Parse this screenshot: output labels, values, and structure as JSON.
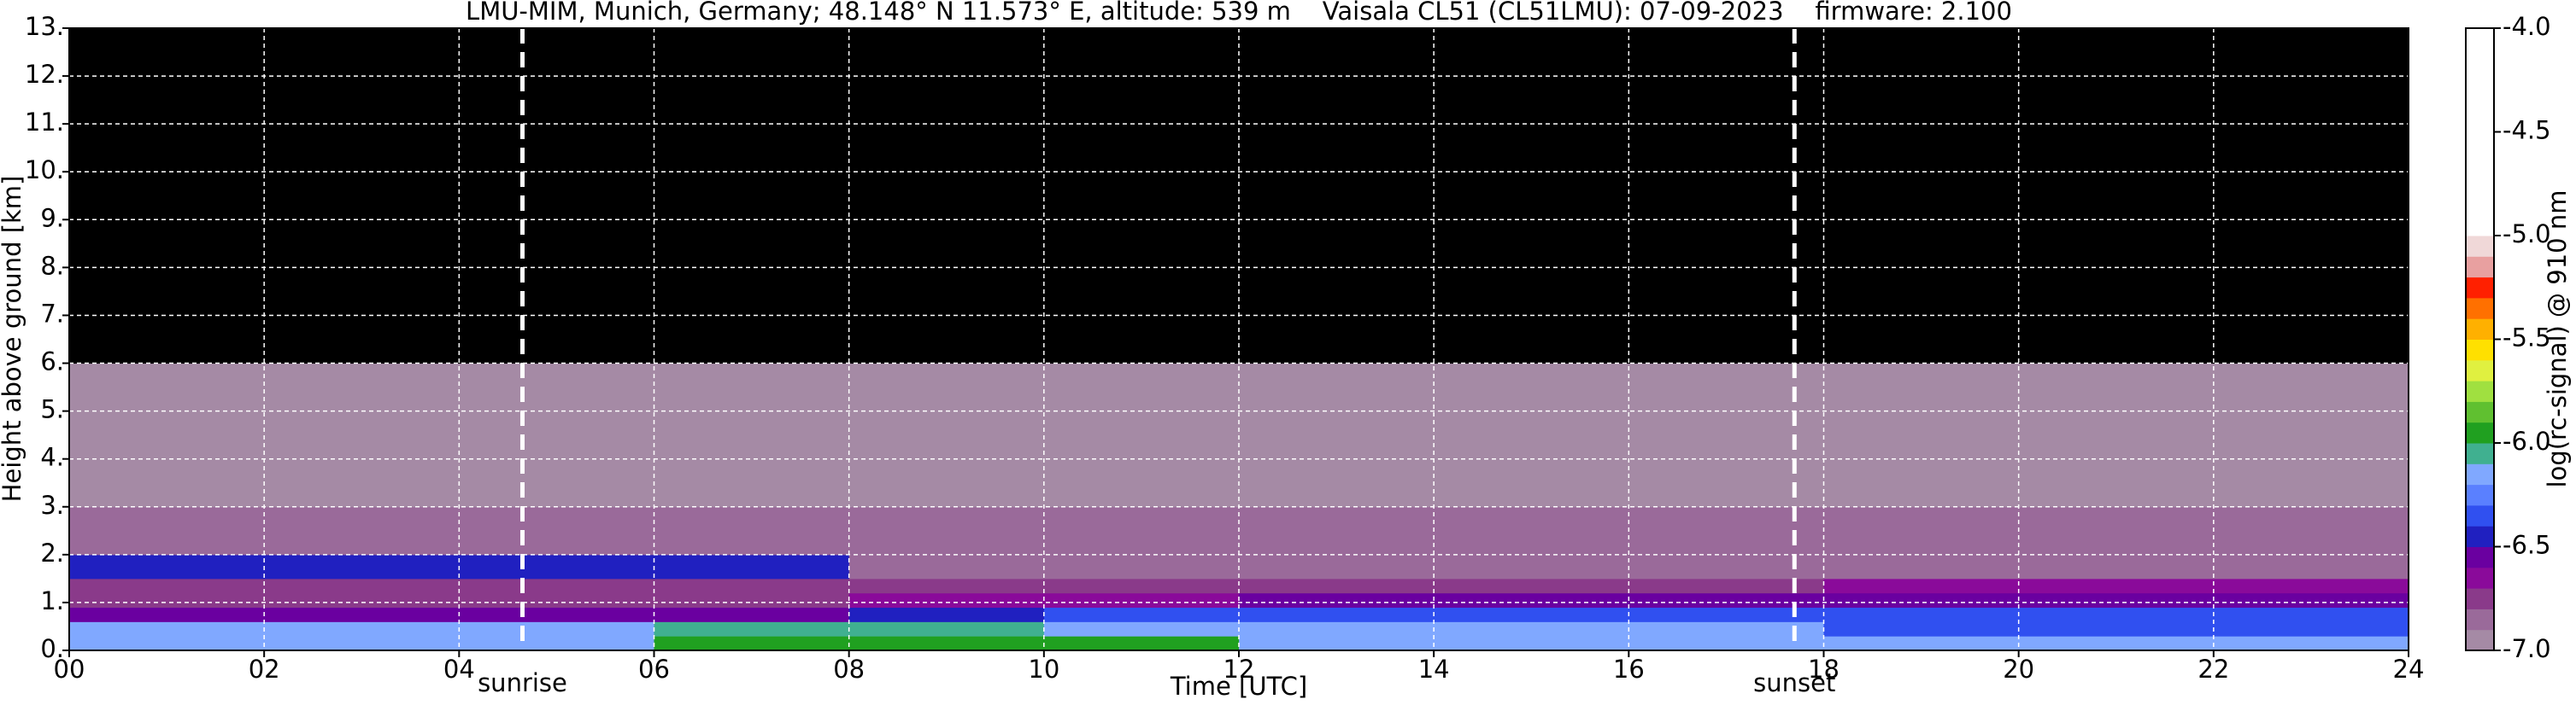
{
  "chart_data": {
    "type": "heatmap",
    "title": "LMU-MIM, Munich, Germany; 48.148° N 11.573° E, altitude: 539 m    Vaisala CL51 (CL51LMU): 07-09-2023    firmware: 2.100",
    "xlabel": "Time [UTC]",
    "ylabel": "Height above ground [km]",
    "xlim": [
      0,
      24
    ],
    "ylim": [
      0,
      13
    ],
    "xticks": [
      {
        "value": 0,
        "label": "00"
      },
      {
        "value": 2,
        "label": "02"
      },
      {
        "value": 4,
        "label": "04"
      },
      {
        "value": 6,
        "label": "06"
      },
      {
        "value": 8,
        "label": "08"
      },
      {
        "value": 10,
        "label": "10"
      },
      {
        "value": 12,
        "label": "12"
      },
      {
        "value": 14,
        "label": "14"
      },
      {
        "value": 16,
        "label": "16"
      },
      {
        "value": 18,
        "label": "18"
      },
      {
        "value": 20,
        "label": "20"
      },
      {
        "value": 22,
        "label": "22"
      },
      {
        "value": 24,
        "label": "24"
      }
    ],
    "yticks": [
      {
        "value": 0,
        "label": "0."
      },
      {
        "value": 1,
        "label": "1."
      },
      {
        "value": 2,
        "label": "2."
      },
      {
        "value": 3,
        "label": "3."
      },
      {
        "value": 4,
        "label": "4."
      },
      {
        "value": 5,
        "label": "5."
      },
      {
        "value": 6,
        "label": "6."
      },
      {
        "value": 7,
        "label": "7."
      },
      {
        "value": 8,
        "label": "8."
      },
      {
        "value": 9,
        "label": "9."
      },
      {
        "value": 10,
        "label": "10."
      },
      {
        "value": 11,
        "label": "11."
      },
      {
        "value": 12,
        "label": "12."
      },
      {
        "value": 13,
        "label": "13."
      }
    ],
    "grid": true,
    "xbins": [
      0,
      2,
      4,
      6,
      8,
      10,
      12,
      14,
      16,
      18,
      20,
      22,
      24
    ],
    "ybins": [
      0,
      0.3,
      0.6,
      0.9,
      1.2,
      1.5,
      2,
      3,
      4,
      6,
      8,
      10,
      13
    ],
    "z": [
      [
        -6.2,
        -6.2,
        -6.15,
        -5.95,
        -5.95,
        -5.95,
        -6.2,
        -6.2,
        -6.2,
        -6.2,
        -6.2,
        -6.2
      ],
      [
        -6.15,
        -6.15,
        -6.15,
        -6.1,
        -6.1,
        -6.2,
        -6.2,
        -6.2,
        -6.2,
        -6.35,
        -6.35,
        -6.35
      ],
      [
        -6.6,
        -6.6,
        -6.6,
        -6.55,
        -6.45,
        -6.35,
        -6.35,
        -6.35,
        -6.35,
        -6.35,
        -6.35,
        -6.35
      ],
      [
        -6.75,
        -6.75,
        -6.75,
        -6.75,
        -6.7,
        -6.65,
        -6.6,
        -6.6,
        -6.6,
        -6.6,
        -6.6,
        -6.6
      ],
      [
        -6.8,
        -6.8,
        -6.8,
        -6.8,
        -6.8,
        -6.8,
        -6.75,
        -6.75,
        -6.75,
        -6.7,
        -6.7,
        -6.7
      ],
      [
        -6.45,
        -6.45,
        -6.5,
        -6.5,
        -6.85,
        -6.85,
        -6.85,
        -6.85,
        -6.85,
        -6.85,
        -6.85,
        -6.85
      ],
      [
        -6.9,
        -6.9,
        -6.9,
        -6.9,
        -6.9,
        -6.9,
        -6.9,
        -6.9,
        -6.9,
        -6.9,
        -6.9,
        -6.9
      ],
      [
        -6.95,
        -6.95,
        -6.95,
        -6.95,
        -6.95,
        -6.95,
        -6.95,
        -6.95,
        -6.95,
        -6.95,
        -6.95,
        -6.95
      ],
      [
        -6.98,
        -6.98,
        -6.98,
        -6.98,
        -6.98,
        -6.98,
        -6.98,
        -6.98,
        -6.98,
        -6.98,
        -6.98,
        -6.98
      ],
      [
        -7.1,
        -7.1,
        -7.1,
        -7.1,
        -7.1,
        -7.1,
        -7.1,
        -7.1,
        -7.1,
        -7.1,
        -7.1,
        -7.1
      ],
      [
        -7.15,
        -7.15,
        -7.15,
        -7.15,
        -7.15,
        -7.15,
        -7.15,
        -7.15,
        -7.15,
        -7.15,
        -7.15,
        -7.15
      ],
      [
        -7.2,
        -7.2,
        -7.2,
        -7.2,
        -7.2,
        -7.2,
        -7.2,
        -7.2,
        -7.2,
        -7.2,
        -7.2,
        -7.2
      ]
    ],
    "markers": [
      {
        "x": 4.65,
        "label": "sunrise"
      },
      {
        "x": 17.7,
        "label": "sunset"
      }
    ],
    "colorbar": {
      "label": "log(rc-signal) @ 910 nm",
      "clim": [
        -7,
        -4
      ],
      "ticks": [
        {
          "value": -4,
          "label": "-4.0"
        },
        -4.5,
        {
          "value": -5,
          "label": "-5.0"
        },
        -5.5,
        {
          "value": -6,
          "label": "-6.0"
        },
        -6.5,
        {
          "value": -7,
          "label": "-7.0"
        }
      ],
      "levels": [
        -7,
        -6.9,
        -6.8,
        -6.7,
        -6.6,
        -6.5,
        -6.4,
        -6.3,
        -6.2,
        -6.1,
        -6,
        -5.9,
        -5.8,
        -5.7,
        -5.6,
        -5.5,
        -5.4,
        -5.3,
        -5.2,
        -5.1,
        -5,
        -4
      ],
      "colors": [
        "#a58aa5",
        "#9a6a9a",
        "#8a3a8a",
        "#8a0a9a",
        "#6a00a0",
        "#2020c0",
        "#3050f0",
        "#5a80ff",
        "#80a8ff",
        "#40b090",
        "#20a020",
        "#60c030",
        "#a0e040",
        "#e0f040",
        "#ffe000",
        "#ffb000",
        "#ff7000",
        "#ff2000",
        "#e8a0a0",
        "#f0d8d8",
        "#ffffff"
      ],
      "under_color": "#000000"
    }
  }
}
